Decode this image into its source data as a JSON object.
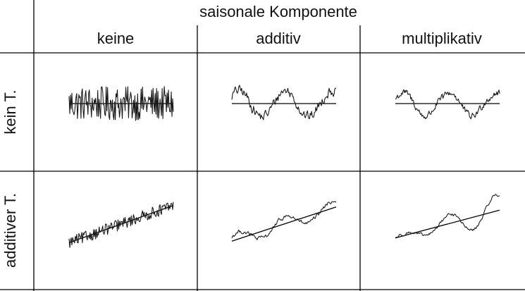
{
  "table": {
    "column_group_title": "saisonale Komponente",
    "columns": [
      "keine",
      "additiv",
      "multiplikativ"
    ],
    "rows": [
      "kein T.",
      "additiver T."
    ]
  },
  "cells": [
    {
      "row": 0,
      "col": 0,
      "trend": "none",
      "seasonal": "none"
    },
    {
      "row": 0,
      "col": 1,
      "trend": "none",
      "seasonal": "additive"
    },
    {
      "row": 0,
      "col": 2,
      "trend": "none",
      "seasonal": "multiplicative"
    },
    {
      "row": 1,
      "col": 0,
      "trend": "additive",
      "seasonal": "none"
    },
    {
      "row": 1,
      "col": 1,
      "trend": "additive",
      "seasonal": "additive"
    },
    {
      "row": 1,
      "col": 2,
      "trend": "additive",
      "seasonal": "multiplicative"
    }
  ]
}
